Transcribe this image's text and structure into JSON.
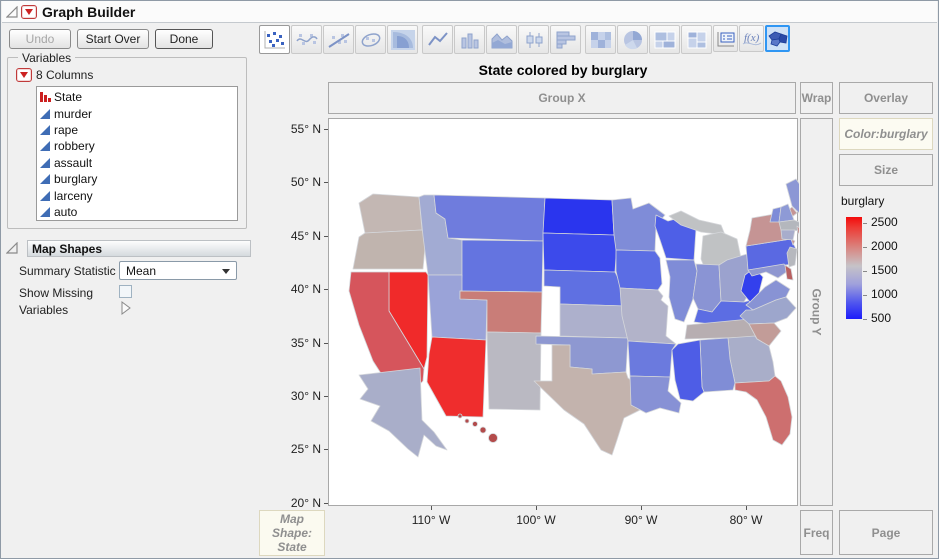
{
  "window": {
    "title": "Graph Builder"
  },
  "buttons": {
    "undo": "Undo",
    "start_over": "Start Over",
    "done": "Done"
  },
  "toolbar": {
    "icons": [
      "points",
      "smoother",
      "line-of-fit",
      "ellipse",
      "contour",
      "line",
      "bar",
      "area",
      "box-plot",
      "histogram",
      "heatmap",
      "pie",
      "treemap",
      "mosaic",
      "caption-box",
      "formula",
      "map-shapes"
    ],
    "selected": "map-shapes"
  },
  "variables_panel": {
    "legend": "Variables",
    "columns_summary": "8 Columns",
    "items": [
      {
        "name": "State",
        "type": "nominal"
      },
      {
        "name": "murder",
        "type": "continuous"
      },
      {
        "name": "rape",
        "type": "continuous"
      },
      {
        "name": "robbery",
        "type": "continuous"
      },
      {
        "name": "assault",
        "type": "continuous"
      },
      {
        "name": "burglary",
        "type": "continuous"
      },
      {
        "name": "larceny",
        "type": "continuous"
      },
      {
        "name": "auto",
        "type": "continuous"
      }
    ]
  },
  "map_shapes_panel": {
    "title": "Map Shapes",
    "summary_statistic_label": "Summary Statistic",
    "summary_statistic_value": "Mean",
    "show_missing_label": "Show Missing",
    "show_missing_checked": false,
    "variables_label": "Variables"
  },
  "chart": {
    "title": "State colored by burglary",
    "drop_zones": {
      "group_x": "Group X",
      "group_y": "Group Y",
      "wrap": "Wrap",
      "overlay": "Overlay",
      "color": "Color:burglary",
      "size": "Size",
      "freq": "Freq",
      "page": "Page",
      "map_shape": [
        "Map",
        "Shape:",
        "State"
      ]
    },
    "x_axis": {
      "ticks": [
        "110° W",
        "100° W",
        "90° W",
        "80° W"
      ]
    },
    "y_axis": {
      "ticks": [
        "55° N",
        "50° N",
        "45° N",
        "40° N",
        "35° N",
        "30° N",
        "25° N",
        "20° N"
      ]
    },
    "legend": {
      "title": "burglary",
      "tick_labels": [
        "2500",
        "2000",
        "1500",
        "1000",
        "500"
      ]
    }
  },
  "chart_data": {
    "type": "choropleth",
    "region": "United States",
    "color_variable": "burglary",
    "statistic": "Mean",
    "scale": {
      "min": 500,
      "max": 2500,
      "low_color": "#2020f0",
      "mid_color": "#c6c3c7",
      "high_color": "#f02020"
    },
    "states": [
      {
        "id": "WA",
        "color": "#c3b7b3"
      },
      {
        "id": "OR",
        "color": "#c0b4ae"
      },
      {
        "id": "CA",
        "color": "#d6555c"
      },
      {
        "id": "NV",
        "color": "#f02a2a"
      },
      {
        "id": "ID",
        "color": "#a2abd3"
      },
      {
        "id": "MT",
        "color": "#6f7cdd"
      },
      {
        "id": "WY",
        "color": "#6474e0"
      },
      {
        "id": "UT",
        "color": "#9aa3d8"
      },
      {
        "id": "CO",
        "color": "#c97d78"
      },
      {
        "id": "AZ",
        "color": "#ef2d2d"
      },
      {
        "id": "NM",
        "color": "#bab9c2"
      },
      {
        "id": "ND",
        "color": "#2a35ee"
      },
      {
        "id": "SD",
        "color": "#3c4aeb"
      },
      {
        "id": "NE",
        "color": "#5f70e2"
      },
      {
        "id": "KS",
        "color": "#adb0cc"
      },
      {
        "id": "OK",
        "color": "#8e98d1"
      },
      {
        "id": "TX",
        "color": "#c3b3ad"
      },
      {
        "id": "MN",
        "color": "#7f8cd8"
      },
      {
        "id": "IA",
        "color": "#5b6de4"
      },
      {
        "id": "MO",
        "color": "#b2b3c9"
      },
      {
        "id": "AR",
        "color": "#6b7ade"
      },
      {
        "id": "LA",
        "color": "#8791d5"
      },
      {
        "id": "WI",
        "color": "#4e5fe7"
      },
      {
        "id": "IL",
        "color": "#7f8cd7"
      },
      {
        "id": "MI",
        "color": "#c0c2c4"
      },
      {
        "id": "IN",
        "color": "#8a94d4"
      },
      {
        "id": "OH",
        "color": "#9ba2ce"
      },
      {
        "id": "KY",
        "color": "#5c6de3"
      },
      {
        "id": "TN",
        "color": "#b7aeb1"
      },
      {
        "id": "MS",
        "color": "#4e5de6"
      },
      {
        "id": "AL",
        "color": "#808dd6"
      },
      {
        "id": "GA",
        "color": "#a9aec9"
      },
      {
        "id": "FL",
        "color": "#cd6f6f"
      },
      {
        "id": "SC",
        "color": "#c29c98"
      },
      {
        "id": "NC",
        "color": "#9da6cc"
      },
      {
        "id": "VA",
        "color": "#8893d4"
      },
      {
        "id": "WV",
        "color": "#3340ed"
      },
      {
        "id": "PA",
        "color": "#5a69e2"
      },
      {
        "id": "NY",
        "color": "#c59494"
      },
      {
        "id": "NJ",
        "color": "#b6b8be"
      },
      {
        "id": "DE",
        "color": "#b86060"
      },
      {
        "id": "MD",
        "color": "#8f97d0"
      },
      {
        "id": "CT",
        "color": "#a8adcc"
      },
      {
        "id": "RI",
        "color": "#c59090"
      },
      {
        "id": "MA",
        "color": "#b4b7bd"
      },
      {
        "id": "VT",
        "color": "#7e8cd8"
      },
      {
        "id": "NH",
        "color": "#8e9ad6"
      },
      {
        "id": "ME",
        "color": "#8c97d5"
      },
      {
        "id": "AK",
        "color": "#a9aec9"
      },
      {
        "id": "HI",
        "color": "#b34b4b"
      }
    ]
  }
}
